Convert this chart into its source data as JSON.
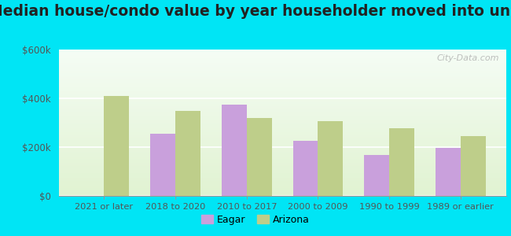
{
  "title": "Median house/condo value by year householder moved into unit",
  "categories": [
    "2021 or later",
    "2018 to 2020",
    "2010 to 2017",
    "2000 to 2009",
    "1990 to 1999",
    "1989 or earlier"
  ],
  "eagar_values": [
    0,
    255000,
    375000,
    225000,
    168000,
    198000
  ],
  "arizona_values": [
    410000,
    350000,
    320000,
    305000,
    278000,
    245000
  ],
  "eagar_color": "#c9a0dc",
  "arizona_color": "#bece8a",
  "ylim": [
    0,
    600000
  ],
  "yticks": [
    0,
    200000,
    400000,
    600000
  ],
  "ytick_labels": [
    "$0",
    "$200k",
    "$400k",
    "$600k"
  ],
  "background_outer": "#00e5f5",
  "title_fontsize": 13.5,
  "legend_labels": [
    "Eagar",
    "Arizona"
  ],
  "bar_width": 0.35
}
